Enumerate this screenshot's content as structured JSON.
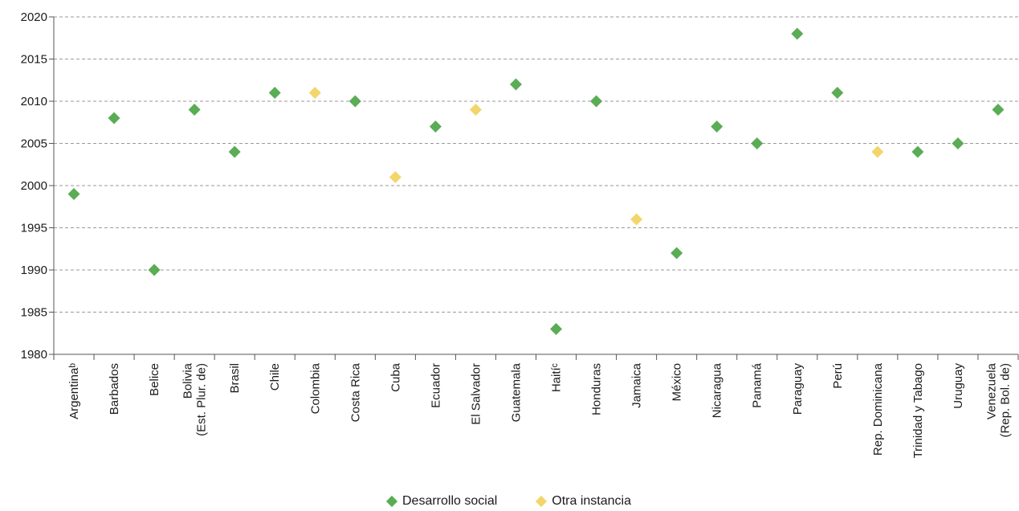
{
  "chart_data": {
    "type": "scatter",
    "title": "",
    "xlabel": "",
    "ylabel": "",
    "ylim": [
      1980,
      2020
    ],
    "yticks": [
      1980,
      1985,
      1990,
      1995,
      2000,
      2005,
      2010,
      2015,
      2020
    ],
    "grid": "horizontal dashed",
    "legend_position": "bottom-center",
    "categories": [
      [
        "Argentinaᵇ"
      ],
      [
        "Barbados"
      ],
      [
        "Belice"
      ],
      [
        "Bolivia",
        "(Est. Plur. de)"
      ],
      [
        "Brasil"
      ],
      [
        "Chile"
      ],
      [
        "Colombia"
      ],
      [
        "Costa Rica"
      ],
      [
        "Cuba"
      ],
      [
        "Ecuador"
      ],
      [
        "El Salvador"
      ],
      [
        "Guatemala"
      ],
      [
        "Haitíᶜ"
      ],
      [
        "Honduras"
      ],
      [
        "Jamaica"
      ],
      [
        "México"
      ],
      [
        "Nicaragua"
      ],
      [
        "Panamá"
      ],
      [
        "Paraguay"
      ],
      [
        "Perú"
      ],
      [
        "Rep. Dominicana"
      ],
      [
        "Trinidad y Tabago"
      ],
      [
        "Uruguay"
      ],
      [
        "Venezuela",
        "(Rep. Bol. de)"
      ]
    ],
    "values": [
      1999,
      2008,
      1990,
      2009,
      2004,
      2011,
      2011,
      2010,
      2001,
      2007,
      2009,
      2012,
      1983,
      2010,
      1996,
      1992,
      2007,
      2005,
      2018,
      2011,
      2004,
      2004,
      2005,
      2009
    ],
    "point_series": [
      0,
      0,
      0,
      0,
      0,
      0,
      1,
      0,
      1,
      0,
      1,
      0,
      0,
      0,
      1,
      0,
      0,
      0,
      0,
      0,
      1,
      0,
      0,
      0
    ],
    "series": [
      {
        "name": "Desarrollo social",
        "color": "#5aac55"
      },
      {
        "name": "Otra instancia",
        "color": "#f2d66b"
      }
    ]
  },
  "legend": {
    "items": [
      {
        "label": "Desarrollo social",
        "color": "#5aac55"
      },
      {
        "label": "Otra instancia",
        "color": "#f2d66b"
      }
    ]
  }
}
